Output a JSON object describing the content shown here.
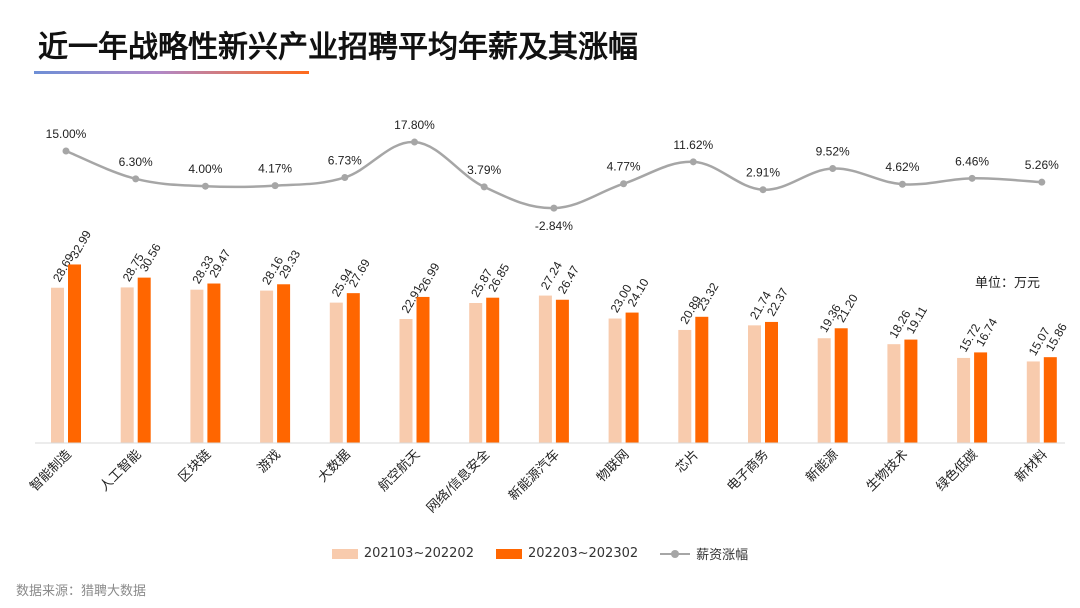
{
  "title": "近一年战略性新兴产业招聘平均年薪及其涨幅",
  "unit_label": "单位：万元",
  "source_note": "数据来源：猎聘大数据",
  "chart_data": {
    "type": "bar",
    "categories": [
      "智能制造",
      "人工智能",
      "区块链",
      "游戏",
      "大数据",
      "航空航天",
      "网络/信息安全",
      "新能源汽车",
      "物联网",
      "芯片",
      "电子商务",
      "新能源",
      "生物技术",
      "绿色低碳",
      "新材料"
    ],
    "series": [
      {
        "name": "202103~202202",
        "color": "#f8cbad",
        "values": [
          28.69,
          28.75,
          28.33,
          28.16,
          25.94,
          22.91,
          25.87,
          27.24,
          23.0,
          20.89,
          21.74,
          19.36,
          18.26,
          15.72,
          15.07
        ],
        "labels": [
          "28.69",
          "28.75",
          "28.33",
          "28.16",
          "25.94",
          "22.91",
          "25.87",
          "27.24",
          "23.00",
          "20.89",
          "21.74",
          "19.36",
          "18.26",
          "15.72",
          "15.07"
        ]
      },
      {
        "name": "202203~202302",
        "color": "#ff6600",
        "values": [
          32.99,
          30.56,
          29.47,
          29.33,
          27.69,
          26.99,
          26.85,
          26.47,
          24.1,
          23.32,
          22.37,
          21.2,
          19.11,
          16.74,
          15.86
        ],
        "labels": [
          "32.99",
          "30.56",
          "29.47",
          "29.33",
          "27.69",
          "26.99",
          "26.85",
          "26.47",
          "24.10",
          "23.32",
          "22.37",
          "21.20",
          "19.11",
          "16.74",
          "15.86"
        ]
      }
    ],
    "line_series": {
      "name": "薪资涨幅",
      "color": "#a6a6a6",
      "values": [
        15.0,
        6.3,
        4.0,
        4.17,
        6.73,
        17.8,
        3.79,
        -2.84,
        4.77,
        11.62,
        2.91,
        9.52,
        4.62,
        6.46,
        5.26
      ],
      "labels": [
        "15.00%",
        "6.30%",
        "4.00%",
        "4.17%",
        "6.73%",
        "17.80%",
        "3.79%",
        "-2.84%",
        "4.77%",
        "11.62%",
        "2.91%",
        "9.52%",
        "4.62%",
        "6.46%",
        "5.26%"
      ]
    },
    "ylim": [
      0,
      34
    ],
    "line_ylim": [
      -5,
      20
    ]
  }
}
